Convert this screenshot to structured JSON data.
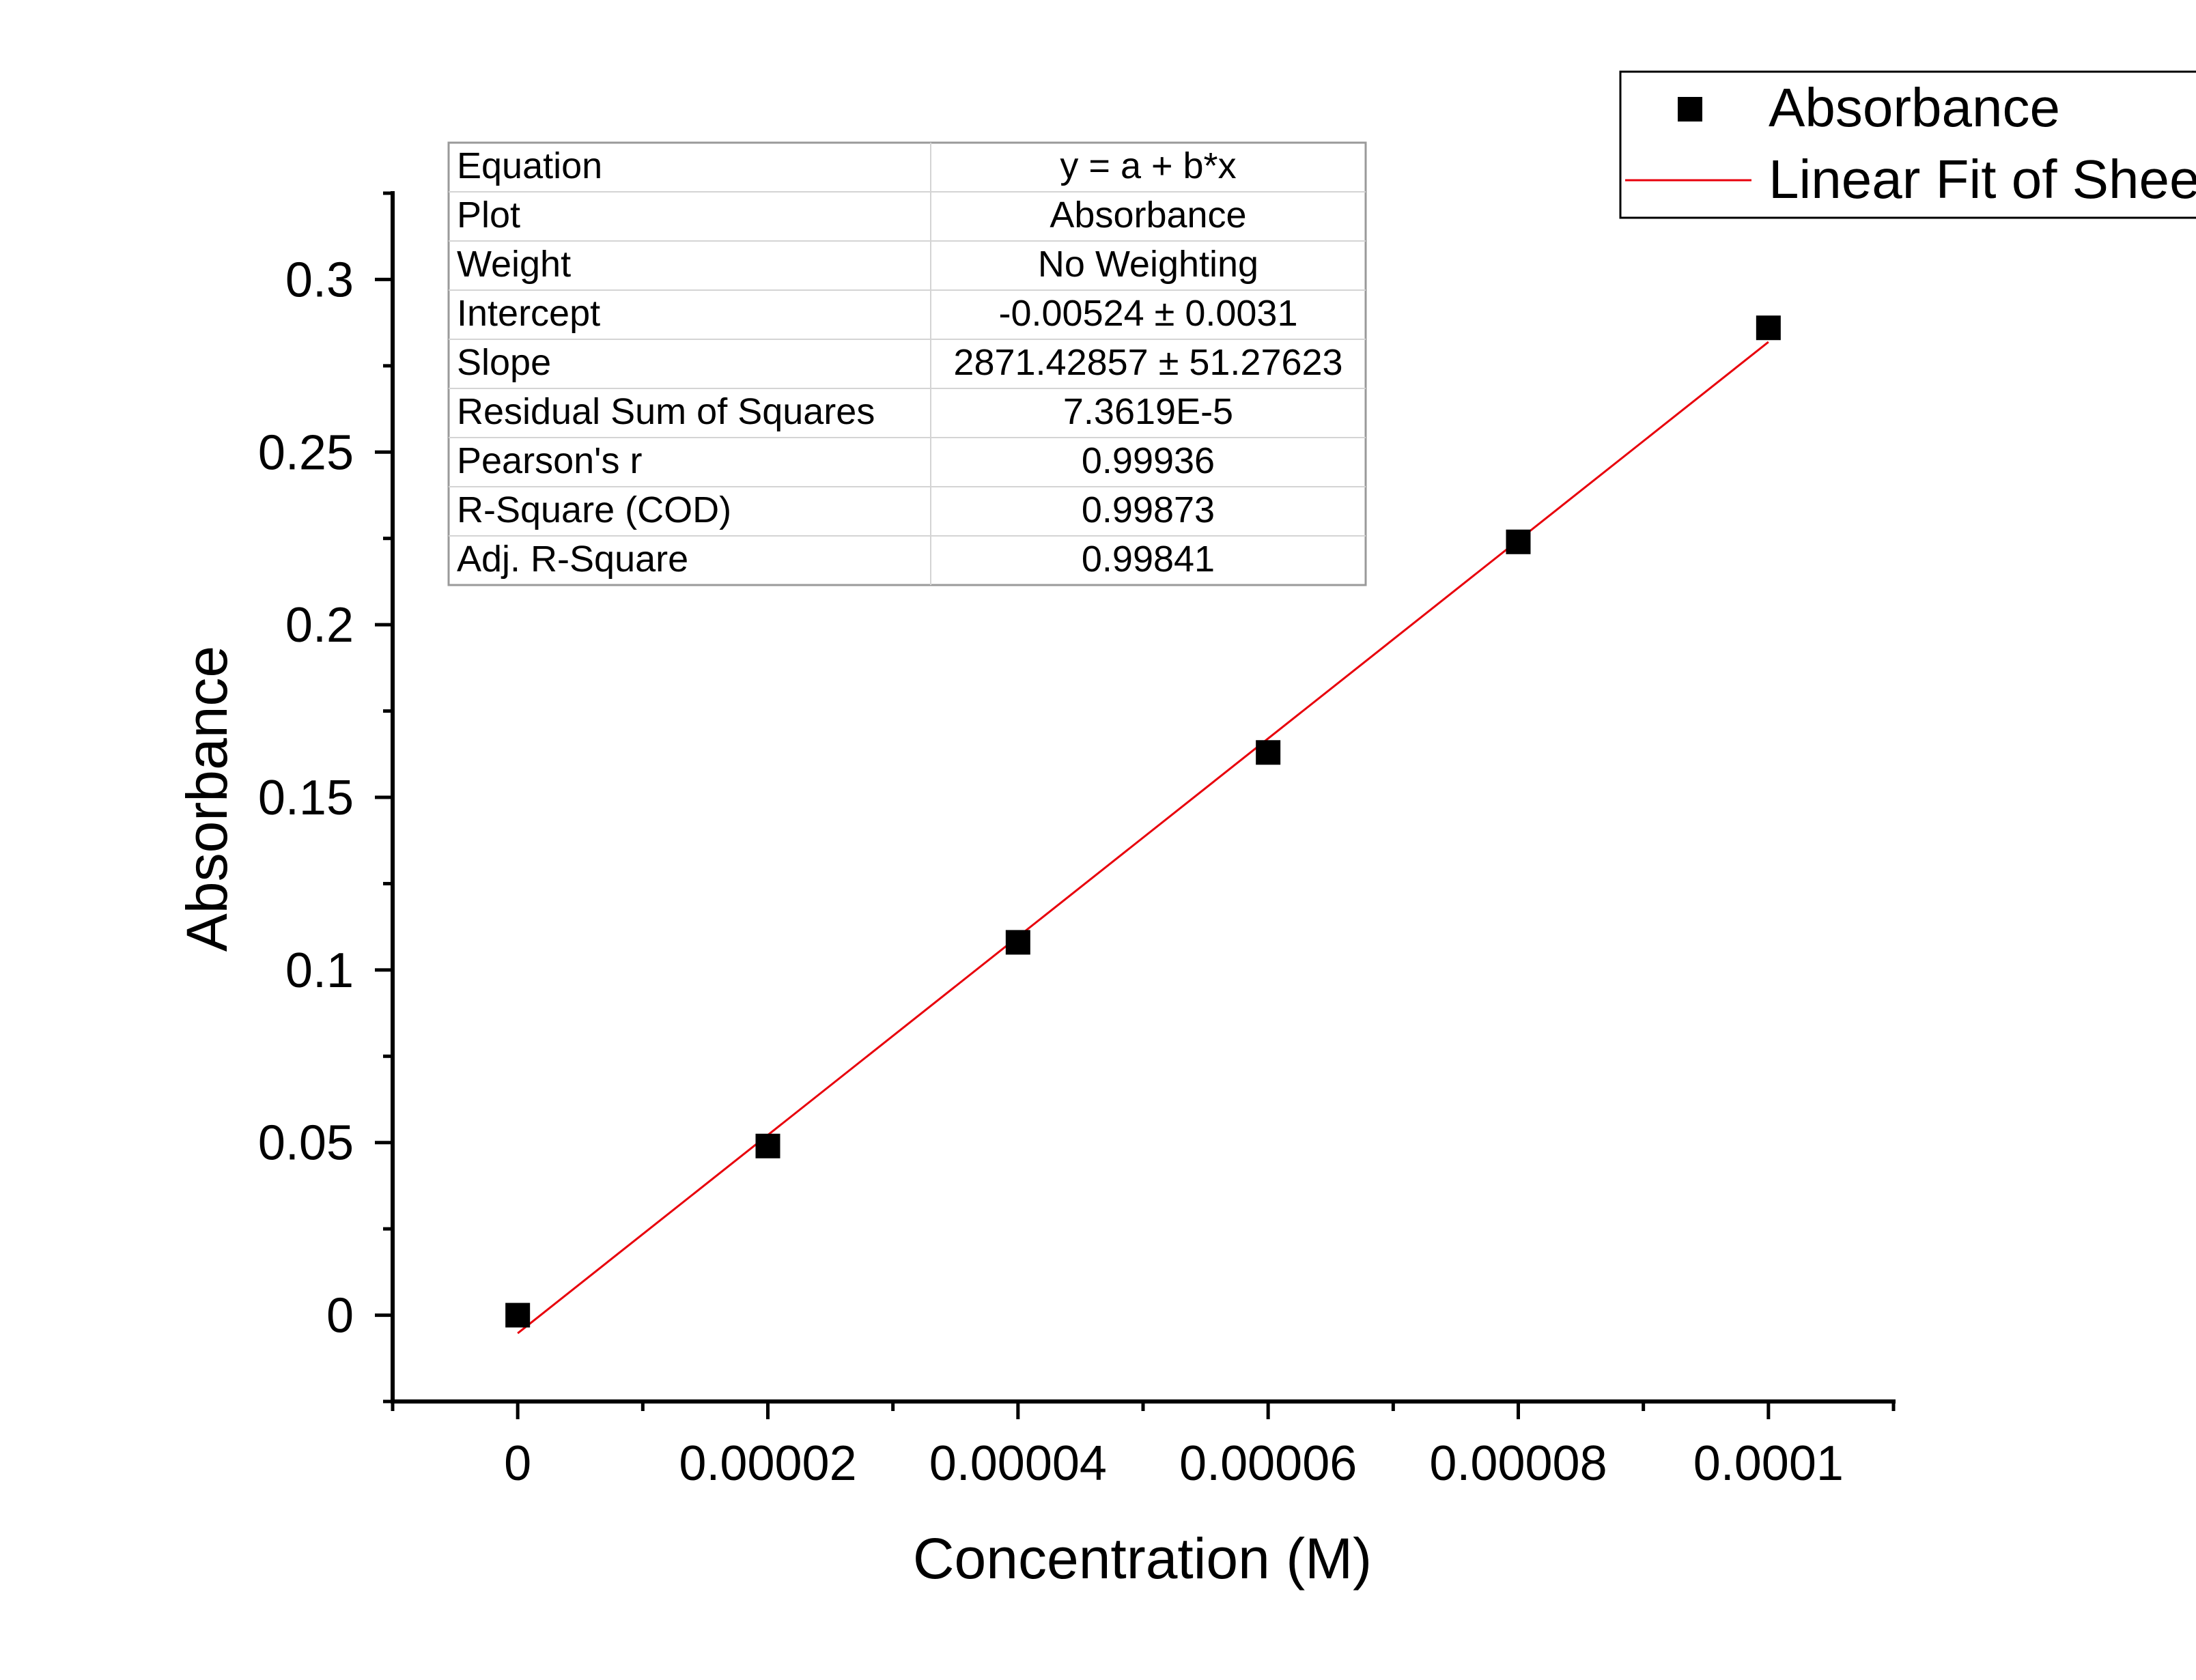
{
  "chart_data": {
    "type": "scatter",
    "xlabel": "Concentration (M)",
    "ylabel": "Absorbance",
    "xlim": [
      -1e-05,
      0.00011
    ],
    "ylim": [
      -0.025,
      0.325
    ],
    "x_ticks": [
      0,
      2e-05,
      4e-05,
      6e-05,
      8e-05,
      0.0001
    ],
    "x_tick_labels": [
      "0",
      "0.00002",
      "0.00004",
      "0.00006",
      "0.00008",
      "0.0001"
    ],
    "y_ticks": [
      0,
      0.05,
      0.1,
      0.15,
      0.2,
      0.25,
      0.3
    ],
    "y_tick_labels": [
      "0",
      "0.05",
      "0.1",
      "0.15",
      "0.2",
      "0.25",
      "0.3"
    ],
    "grid": false,
    "legend_position": "top-right",
    "series": [
      {
        "name": "Absorbance",
        "kind": "scatter",
        "marker": "square",
        "color": "#000000",
        "x": [
          0,
          2e-05,
          4e-05,
          6e-05,
          8e-05,
          0.0001
        ],
        "y": [
          0,
          0.049,
          0.108,
          0.163,
          0.224,
          0.286
        ]
      },
      {
        "name": "Linear Fit of Shee",
        "kind": "line",
        "color": "#e8000b",
        "x": [
          0,
          0.0001
        ],
        "y": [
          -0.00524,
          0.2819
        ]
      }
    ],
    "fit_table": {
      "rows": [
        {
          "label": "Equation",
          "value": "y = a + b*x"
        },
        {
          "label": "Plot",
          "value": "Absorbance"
        },
        {
          "label": "Weight",
          "value": "No Weighting"
        },
        {
          "label": "Intercept",
          "value": "-0.00524 ± 0.0031"
        },
        {
          "label": "Slope",
          "value": "2871.42857 ± 51.27623"
        },
        {
          "label": "Residual Sum of Squares",
          "value": "7.3619E-5"
        },
        {
          "label": "Pearson's r",
          "value": "0.99936"
        },
        {
          "label": "R-Square (COD)",
          "value": "0.99873"
        },
        {
          "label": "Adj. R-Square",
          "value": "0.99841"
        }
      ]
    }
  }
}
